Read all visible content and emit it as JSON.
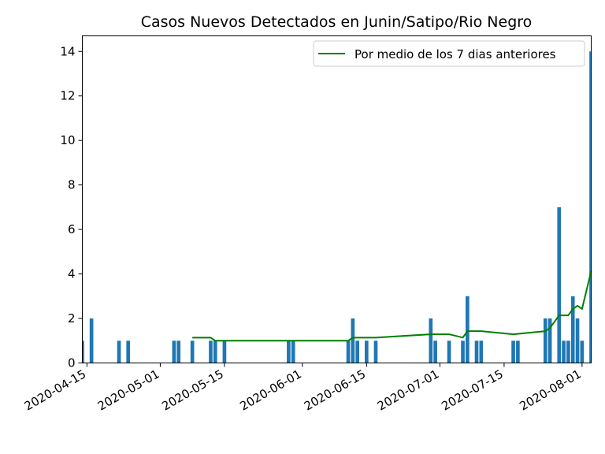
{
  "chart_data": {
    "type": "bar",
    "title": "Casos Nuevos Detectados en Junin/Satipo/Rio Negro",
    "xlabel": "",
    "ylabel": "",
    "xlim": [
      "2020-04-14",
      "2020-08-03"
    ],
    "ylim": [
      0,
      14.7
    ],
    "y_ticks": [
      0,
      2,
      4,
      6,
      8,
      10,
      12,
      14
    ],
    "x_ticks": [
      "2020-04-15",
      "2020-05-01",
      "2020-05-15",
      "2020-06-01",
      "2020-06-15",
      "2020-07-01",
      "2020-07-15",
      "2020-08-01"
    ],
    "grid": false,
    "legend_position": "top-right",
    "series": [
      {
        "type": "bar",
        "color": "#1f77b4",
        "points": [
          {
            "x": "2020-04-14",
            "y": 1
          },
          {
            "x": "2020-04-16",
            "y": 2
          },
          {
            "x": "2020-04-22",
            "y": 1
          },
          {
            "x": "2020-04-24",
            "y": 1
          },
          {
            "x": "2020-05-04",
            "y": 1
          },
          {
            "x": "2020-05-05",
            "y": 1
          },
          {
            "x": "2020-05-08",
            "y": 1
          },
          {
            "x": "2020-05-12",
            "y": 1
          },
          {
            "x": "2020-05-13",
            "y": 1
          },
          {
            "x": "2020-05-15",
            "y": 1
          },
          {
            "x": "2020-05-29",
            "y": 1
          },
          {
            "x": "2020-05-30",
            "y": 1
          },
          {
            "x": "2020-06-11",
            "y": 1
          },
          {
            "x": "2020-06-12",
            "y": 2
          },
          {
            "x": "2020-06-13",
            "y": 1
          },
          {
            "x": "2020-06-15",
            "y": 1
          },
          {
            "x": "2020-06-17",
            "y": 1
          },
          {
            "x": "2020-06-29",
            "y": 2
          },
          {
            "x": "2020-06-30",
            "y": 1
          },
          {
            "x": "2020-07-03",
            "y": 1
          },
          {
            "x": "2020-07-06",
            "y": 1
          },
          {
            "x": "2020-07-07",
            "y": 3
          },
          {
            "x": "2020-07-09",
            "y": 1
          },
          {
            "x": "2020-07-10",
            "y": 1
          },
          {
            "x": "2020-07-17",
            "y": 1
          },
          {
            "x": "2020-07-18",
            "y": 1
          },
          {
            "x": "2020-07-24",
            "y": 2
          },
          {
            "x": "2020-07-25",
            "y": 2
          },
          {
            "x": "2020-07-27",
            "y": 7
          },
          {
            "x": "2020-07-28",
            "y": 1
          },
          {
            "x": "2020-07-29",
            "y": 1
          },
          {
            "x": "2020-07-30",
            "y": 3
          },
          {
            "x": "2020-07-31",
            "y": 2
          },
          {
            "x": "2020-08-01",
            "y": 1
          },
          {
            "x": "2020-08-03",
            "y": 14
          }
        ]
      },
      {
        "type": "line",
        "name": "Por medio de los 7 dias anteriores",
        "color": "#008000",
        "points": [
          {
            "x": "2020-05-08",
            "y": 1.14
          },
          {
            "x": "2020-05-12",
            "y": 1.14
          },
          {
            "x": "2020-05-13",
            "y": 1.0
          },
          {
            "x": "2020-05-15",
            "y": 1.0
          },
          {
            "x": "2020-05-29",
            "y": 1.0
          },
          {
            "x": "2020-05-30",
            "y": 1.0
          },
          {
            "x": "2020-06-11",
            "y": 1.0
          },
          {
            "x": "2020-06-12",
            "y": 1.14
          },
          {
            "x": "2020-06-17",
            "y": 1.14
          },
          {
            "x": "2020-06-29",
            "y": 1.29
          },
          {
            "x": "2020-07-03",
            "y": 1.29
          },
          {
            "x": "2020-07-06",
            "y": 1.14
          },
          {
            "x": "2020-07-07",
            "y": 1.43
          },
          {
            "x": "2020-07-10",
            "y": 1.43
          },
          {
            "x": "2020-07-17",
            "y": 1.29
          },
          {
            "x": "2020-07-24",
            "y": 1.43
          },
          {
            "x": "2020-07-25",
            "y": 1.57
          },
          {
            "x": "2020-07-27",
            "y": 2.14
          },
          {
            "x": "2020-07-29",
            "y": 2.14
          },
          {
            "x": "2020-07-30",
            "y": 2.43
          },
          {
            "x": "2020-07-31",
            "y": 2.57
          },
          {
            "x": "2020-08-01",
            "y": 2.43
          },
          {
            "x": "2020-08-03",
            "y": 4.14
          }
        ]
      }
    ]
  }
}
